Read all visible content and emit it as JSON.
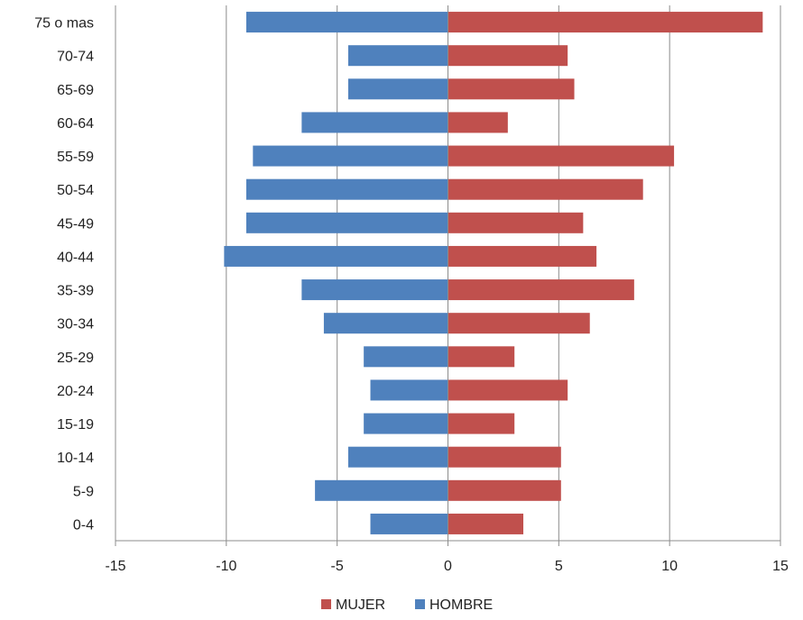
{
  "chart_data": {
    "type": "bar",
    "orientation": "horizontal",
    "categories": [
      "75 o mas",
      "70-74",
      "65-69",
      "60-64",
      "55-59",
      "50-54",
      "45-49",
      "40-44",
      "35-39",
      "30-34",
      "25-29",
      "20-24",
      "15-19",
      "10-14",
      "5-9",
      "0-4"
    ],
    "series": [
      {
        "name": "MUJER",
        "color": "#c0504d",
        "values": [
          14.2,
          5.4,
          5.7,
          2.7,
          10.2,
          8.8,
          6.1,
          6.7,
          8.4,
          6.4,
          3.0,
          5.4,
          3.0,
          5.1,
          5.1,
          3.4
        ]
      },
      {
        "name": "HOMBRE",
        "color": "#4f81bd",
        "values": [
          -9.1,
          -4.5,
          -4.5,
          -6.6,
          -8.8,
          -9.1,
          -9.1,
          -10.1,
          -6.6,
          -5.6,
          -3.8,
          -3.5,
          -3.8,
          -4.5,
          -6.0,
          -3.5
        ]
      }
    ],
    "x_ticks": [
      "-15",
      "-10",
      "-5",
      "0",
      "5",
      "10",
      "15"
    ],
    "xlim": [
      -15,
      15
    ],
    "title": "",
    "xlabel": "",
    "ylabel": "",
    "grid": "vertical",
    "legend": {
      "placement": "bottom",
      "entries": [
        "MUJER",
        "HOMBRE"
      ]
    }
  }
}
